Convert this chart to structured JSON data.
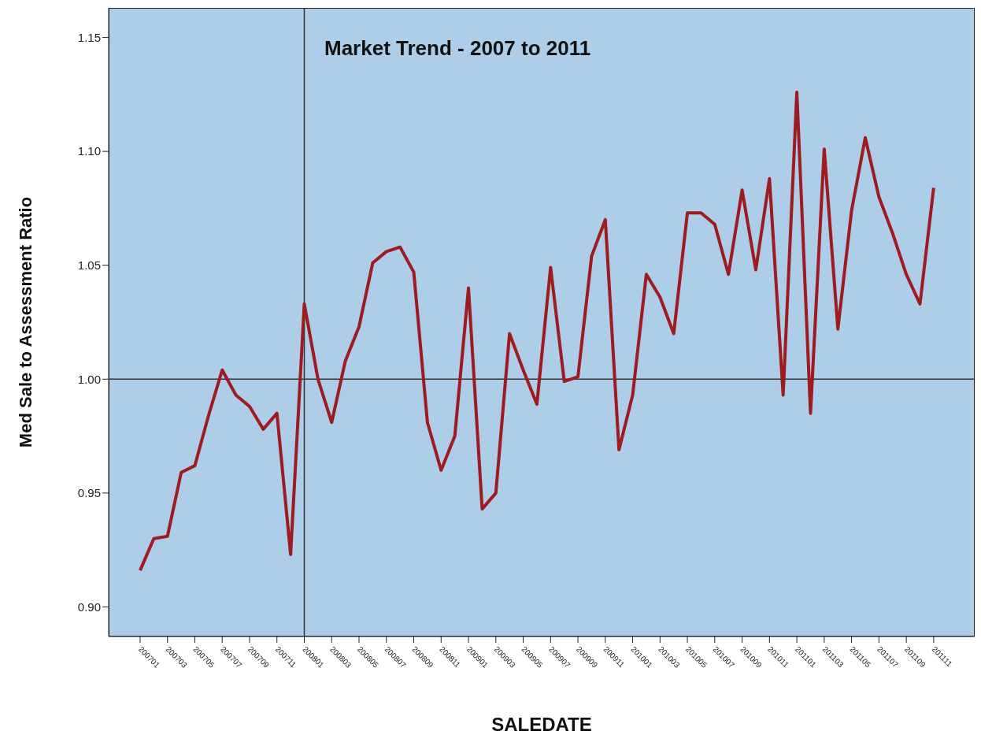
{
  "chart_data": {
    "type": "line",
    "title": "Market Trend - 2007 to 2011",
    "xlabel": "SALEDATE",
    "ylabel": "Med Sale to Assessment Ratio",
    "categories": [
      "200701",
      null,
      "200703",
      null,
      "200705",
      null,
      "200707",
      null,
      "200709",
      null,
      "200711",
      null,
      "200801",
      null,
      "200803",
      null,
      "200805",
      null,
      "200807",
      null,
      "200809",
      null,
      "200811",
      null,
      "200901",
      null,
      "200903",
      null,
      "200905",
      null,
      "200907",
      null,
      "200909",
      null,
      "200911",
      null,
      "201001",
      null,
      "201003",
      null,
      "201005",
      null,
      "201007",
      null,
      "201009",
      null,
      "201011",
      null,
      "201101",
      null,
      "201103",
      null,
      "201105",
      null,
      "201107",
      null,
      "201109",
      null,
      "201111"
    ],
    "series": [
      {
        "color": "#9e1b1f",
        "values": [
          0.916,
          0.93,
          0.931,
          0.959,
          0.962,
          0.984,
          1.004,
          0.993,
          0.988,
          0.978,
          0.985,
          0.923,
          1.033,
          1.0,
          0.981,
          1.008,
          1.023,
          1.051,
          1.056,
          1.058,
          1.047,
          0.981,
          0.96,
          0.975,
          1.04,
          0.943,
          0.95,
          1.02,
          1.004,
          0.989,
          1.049,
          0.999,
          1.001,
          1.054,
          1.07,
          0.969,
          0.993,
          1.046,
          1.036,
          1.02,
          1.073,
          1.073,
          1.068,
          1.046,
          1.083,
          1.048,
          1.088,
          0.993,
          1.126,
          0.985,
          1.101,
          1.022,
          1.074,
          1.106,
          1.08,
          1.064,
          1.046,
          1.033,
          1.084
        ]
      }
    ],
    "ylim": [
      0.887,
      1.163
    ],
    "yticks": [
      {
        "value": 0.9,
        "label": "0.90"
      },
      0.95,
      {
        "value": 1.0,
        "label": "1.00"
      },
      1.05,
      {
        "value": 1.1,
        "label": "1.10"
      },
      1.15
    ],
    "ref_lines": [
      {
        "axis": "x",
        "value": "200801",
        "color": "#333333"
      },
      {
        "axis": "y",
        "value": 1.0,
        "color": "#333333"
      }
    ],
    "grid": false,
    "legend": false,
    "marker": "none",
    "line_style": "solid"
  }
}
